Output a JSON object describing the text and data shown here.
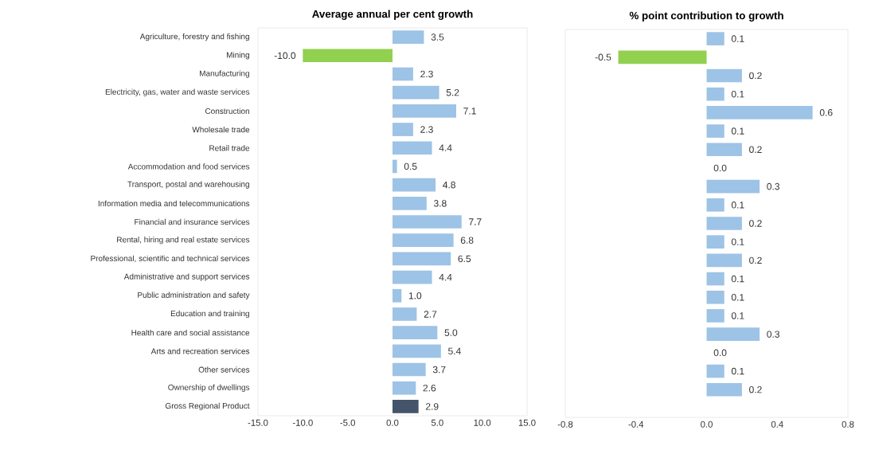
{
  "chart_data": [
    {
      "type": "bar",
      "orientation": "horizontal",
      "title": "Average annual per cent growth",
      "categories": [
        "Agriculture, forestry and fishing",
        "Mining",
        "Manufacturing",
        "Electricity, gas, water and waste services",
        "Construction",
        "Wholesale trade",
        "Retail trade",
        "Accommodation and food services",
        "Transport, postal and warehousing",
        "Information media and telecommunications",
        "Financial and insurance services",
        "Rental, hiring and real estate services",
        "Professional, scientific and technical services",
        "Administrative and support services",
        "Public administration and safety",
        "Education and training",
        "Health care and social assistance",
        "Arts and recreation services",
        "Other services",
        "Ownership of dwellings",
        "Gross Regional Product"
      ],
      "values": [
        3.5,
        -10.0,
        2.3,
        5.2,
        7.1,
        2.3,
        4.4,
        0.5,
        4.8,
        3.8,
        7.7,
        6.8,
        6.5,
        4.4,
        1.0,
        2.7,
        5.0,
        5.4,
        3.7,
        2.6,
        2.9
      ],
      "colors": [
        "#9dc3e6",
        "#92d050",
        "#9dc3e6",
        "#9dc3e6",
        "#9dc3e6",
        "#9dc3e6",
        "#9dc3e6",
        "#9dc3e6",
        "#9dc3e6",
        "#9dc3e6",
        "#9dc3e6",
        "#9dc3e6",
        "#9dc3e6",
        "#9dc3e6",
        "#9dc3e6",
        "#9dc3e6",
        "#9dc3e6",
        "#9dc3e6",
        "#9dc3e6",
        "#9dc3e6",
        "#44546a"
      ],
      "xlim": [
        -15,
        15
      ],
      "xticks": [
        {
          "value": -15,
          "label": "-15.0"
        },
        {
          "value": -10,
          "label": "-10.0"
        },
        {
          "value": -5,
          "label": "-5.0"
        },
        {
          "value": 0,
          "label": "0.0"
        },
        {
          "value": 5,
          "label": "5.0"
        },
        {
          "value": 10,
          "label": "10.0"
        },
        {
          "value": 15,
          "label": "15.0"
        }
      ],
      "value_labels": [
        "3.5",
        "-10.0",
        "2.3",
        "5.2",
        "7.1",
        "2.3",
        "4.4",
        "0.5",
        "4.8",
        "3.8",
        "7.7",
        "6.8",
        "6.5",
        "4.4",
        "1.0",
        "2.7",
        "5.0",
        "5.4",
        "3.7",
        "2.6",
        "2.9"
      ]
    },
    {
      "type": "bar",
      "orientation": "horizontal",
      "title": "% point contribution to growth",
      "categories": [
        null,
        null,
        null,
        null,
        null,
        null,
        null,
        null,
        null,
        null,
        null,
        null,
        null,
        null,
        null,
        null,
        null,
        null,
        null,
        null,
        null
      ],
      "values": [
        0.1,
        -0.5,
        0.2,
        0.1,
        0.6,
        0.1,
        0.2,
        0.0,
        0.3,
        0.1,
        0.2,
        0.1,
        0.2,
        0.1,
        0.1,
        0.1,
        0.3,
        0.0,
        0.1,
        0.2,
        null
      ],
      "colors": [
        "#9dc3e6",
        "#92d050",
        "#9dc3e6",
        "#9dc3e6",
        "#9dc3e6",
        "#9dc3e6",
        "#9dc3e6",
        "#9dc3e6",
        "#9dc3e6",
        "#9dc3e6",
        "#9dc3e6",
        "#9dc3e6",
        "#9dc3e6",
        "#9dc3e6",
        "#9dc3e6",
        "#9dc3e6",
        "#9dc3e6",
        "#9dc3e6",
        "#9dc3e6",
        "#9dc3e6",
        "#9dc3e6"
      ],
      "xlim": [
        -0.8,
        0.8
      ],
      "xticks": [
        {
          "value": -0.8,
          "label": "-0.8"
        },
        {
          "value": -0.4,
          "label": "-0.4"
        },
        {
          "value": 0,
          "label": "0.0"
        },
        {
          "value": 0.4,
          "label": "0.4"
        },
        {
          "value": 0.8,
          "label": "0.8"
        }
      ],
      "tick_labels": "x",
      "value_labels": [
        "0.1",
        "-0.5",
        "0.2",
        "0.1",
        "0.6",
        "0.1",
        "0.2",
        "0.0",
        "0.3",
        "0.1",
        "0.2",
        "0.1",
        "0.2",
        "0.1",
        "0.1",
        "0.1",
        "0.3",
        "0.0",
        "0.1",
        "0.2",
        null
      ]
    }
  ]
}
